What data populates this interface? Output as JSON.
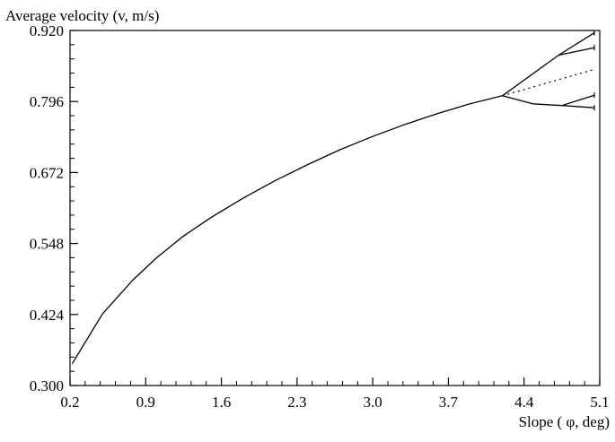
{
  "chart_data": {
    "type": "line",
    "title": "",
    "ylabel": "Average velocity (v,  m/s)",
    "xlabel_prefix": "Slope ( ",
    "xlabel_symbol": "φ",
    "xlabel_suffix": ", deg)",
    "xlim": [
      0.2,
      5.1
    ],
    "ylim": [
      0.3,
      0.92
    ],
    "x_ticks": [
      "0.2",
      "0.9",
      "1.6",
      "2.3",
      "3.0",
      "3.7",
      "4.4",
      "5.1"
    ],
    "y_ticks": [
      "0.300",
      "0.424",
      "0.548",
      "0.672",
      "0.796",
      "0.920"
    ],
    "grid": false,
    "legend": "none",
    "series": [
      {
        "style": "solid",
        "x": [
          0.22,
          0.5,
          0.78,
          1.0,
          1.25,
          1.5,
          1.8,
          2.1,
          2.4,
          2.7,
          3.0,
          3.3,
          3.6,
          3.9,
          4.2
        ],
        "y": [
          0.338,
          0.425,
          0.484,
          0.523,
          0.561,
          0.593,
          0.627,
          0.658,
          0.686,
          0.712,
          0.735,
          0.756,
          0.775,
          0.792,
          0.806
        ]
      },
      {
        "style": "solid",
        "x": [
          4.2,
          4.72,
          5.05
        ],
        "y": [
          0.806,
          0.877,
          0.916
        ]
      },
      {
        "style": "solid",
        "x": [
          4.72,
          5.05
        ],
        "y": [
          0.877,
          0.89
        ]
      },
      {
        "style": "dotted",
        "x": [
          4.2,
          5.05
        ],
        "y": [
          0.806,
          0.852
        ]
      },
      {
        "style": "solid",
        "x": [
          4.2,
          4.48,
          4.75,
          5.05
        ],
        "y": [
          0.806,
          0.792,
          0.789,
          0.785
        ]
      },
      {
        "style": "solid",
        "x": [
          4.75,
          5.05
        ],
        "y": [
          0.789,
          0.807
        ]
      }
    ]
  }
}
